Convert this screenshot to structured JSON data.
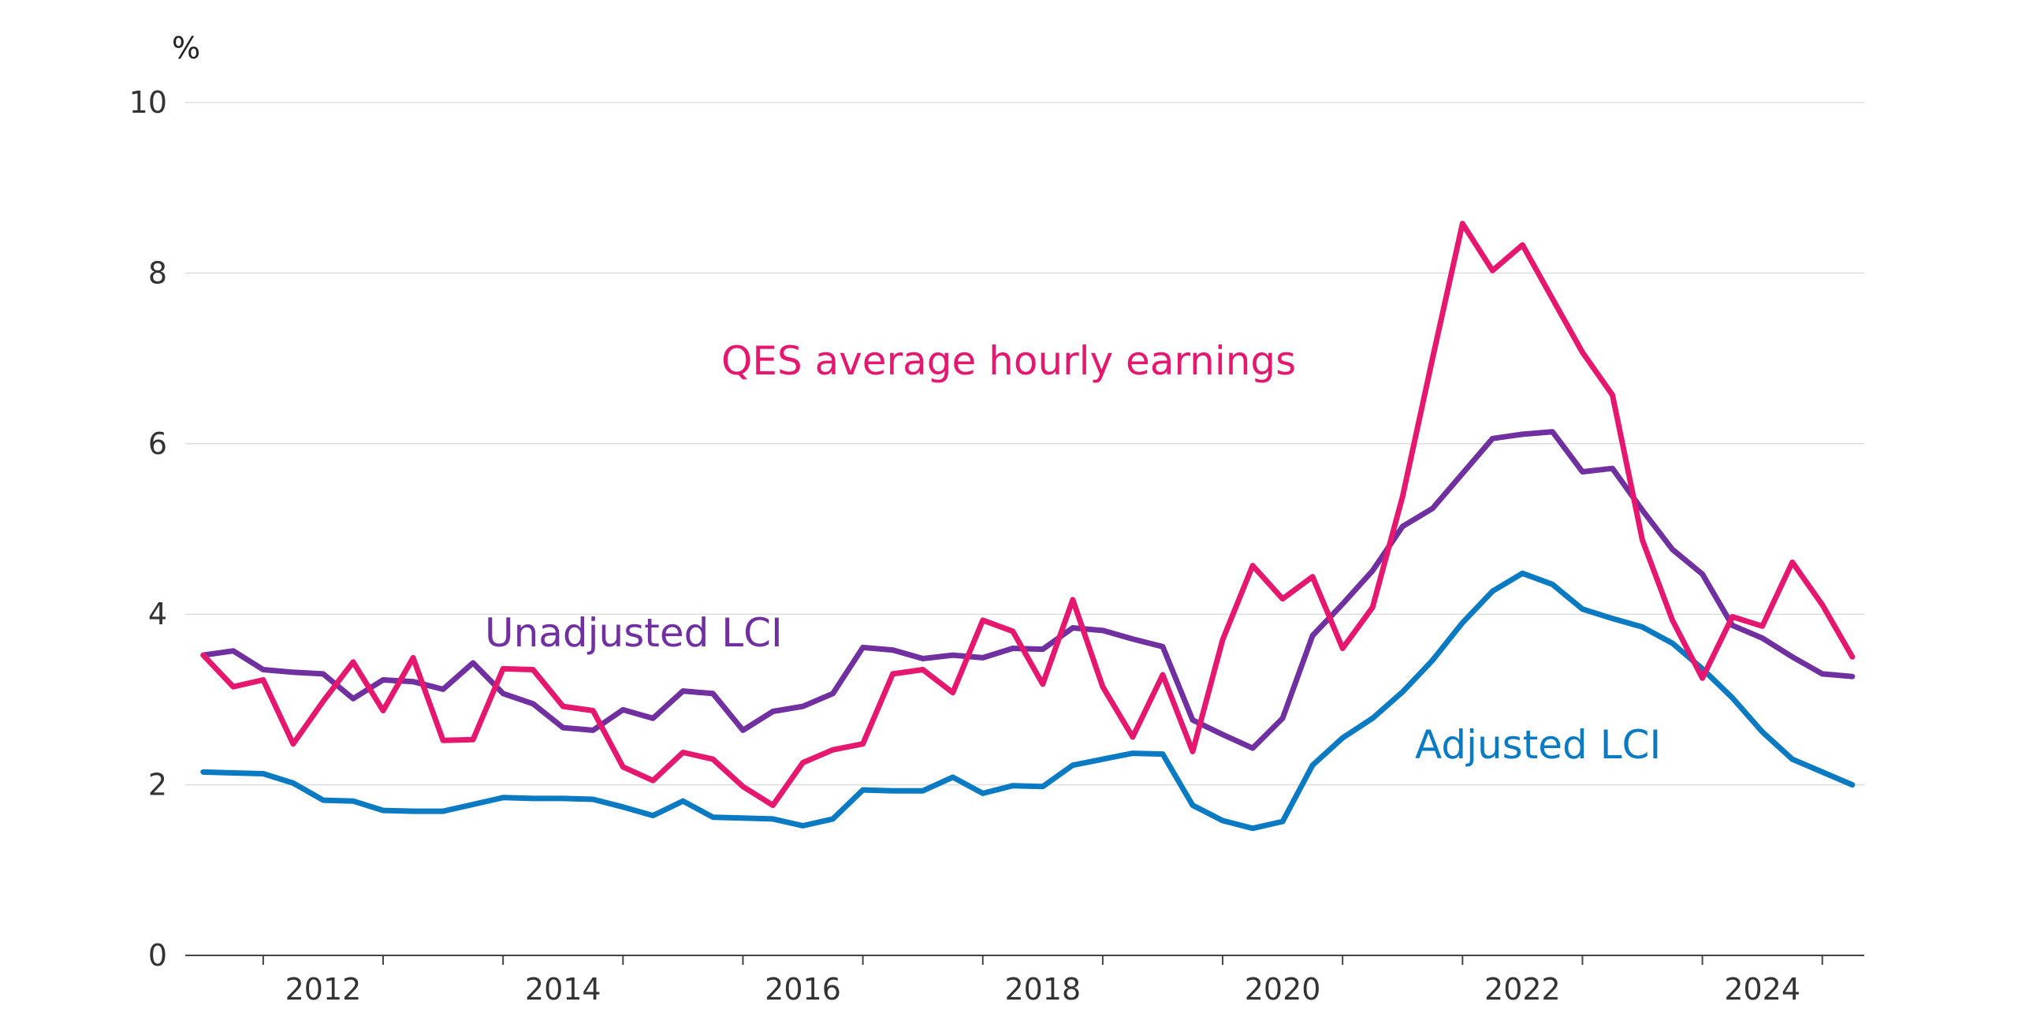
{
  "chart_data": {
    "type": "line",
    "ylabel": "%",
    "ylim": [
      0,
      10
    ],
    "yticks": [
      "0",
      "2",
      "4",
      "6",
      "8",
      "10"
    ],
    "xlim": [
      2011.35,
      2025.35
    ],
    "xticks": [
      "2012",
      "2014",
      "2016",
      "2018",
      "2020",
      "2022",
      "2024"
    ],
    "grid": true,
    "x": [
      2011.5,
      2011.75,
      2012.0,
      2012.25,
      2012.5,
      2012.75,
      2013.0,
      2013.25,
      2013.5,
      2013.75,
      2014.0,
      2014.25,
      2014.5,
      2014.75,
      2015.0,
      2015.25,
      2015.5,
      2015.75,
      2016.0,
      2016.25,
      2016.5,
      2016.75,
      2017.0,
      2017.25,
      2017.5,
      2017.75,
      2018.0,
      2018.25,
      2018.5,
      2018.75,
      2019.0,
      2019.25,
      2019.5,
      2019.75,
      2020.0,
      2020.25,
      2020.5,
      2020.75,
      2021.0,
      2021.25,
      2021.5,
      2021.75,
      2022.0,
      2022.25,
      2022.5,
      2022.75,
      2023.0,
      2023.25,
      2023.5,
      2023.75,
      2024.0,
      2024.25,
      2024.5,
      2024.75,
      2025.0,
      2025.25
    ],
    "series": [
      {
        "name": "QES average hourly earnings",
        "color": "#e5176f",
        "values": [
          3.52,
          3.15,
          3.23,
          2.48,
          2.98,
          3.44,
          2.87,
          3.49,
          2.52,
          2.53,
          3.36,
          3.35,
          2.92,
          2.87,
          2.21,
          2.05,
          2.38,
          2.3,
          1.98,
          1.76,
          2.26,
          2.41,
          2.48,
          3.3,
          3.35,
          3.08,
          3.93,
          3.8,
          3.18,
          4.17,
          3.15,
          2.56,
          3.29,
          2.39,
          3.7,
          4.57,
          4.18,
          4.44,
          3.6,
          4.08,
          5.38,
          7.0,
          8.58,
          8.03,
          8.33,
          7.7,
          7.07,
          6.57,
          4.87,
          3.93,
          3.25,
          3.97,
          3.86,
          4.61,
          4.11,
          3.5
        ]
      },
      {
        "name": "Unadjusted LCI",
        "color": "#7030a0",
        "values": [
          3.52,
          3.57,
          3.35,
          3.32,
          3.3,
          3.01,
          3.23,
          3.21,
          3.12,
          3.43,
          3.07,
          2.95,
          2.67,
          2.64,
          2.88,
          2.78,
          3.1,
          3.07,
          2.64,
          2.86,
          2.92,
          3.07,
          3.61,
          3.58,
          3.48,
          3.52,
          3.49,
          3.6,
          3.59,
          3.84,
          3.81,
          3.71,
          3.62,
          2.76,
          2.59,
          2.43,
          2.78,
          3.75,
          4.12,
          4.51,
          5.03,
          5.24,
          5.65,
          6.06,
          6.11,
          6.14,
          5.67,
          5.71,
          5.22,
          4.76,
          4.47,
          3.87,
          3.72,
          3.5,
          3.3,
          3.27
        ]
      },
      {
        "name": "Adjusted LCI",
        "color": "#0a7ac2",
        "values": [
          2.15,
          2.14,
          2.13,
          2.02,
          1.82,
          1.81,
          1.7,
          1.69,
          1.69,
          1.77,
          1.85,
          1.84,
          1.84,
          1.83,
          1.74,
          1.64,
          1.81,
          1.62,
          1.61,
          1.6,
          1.52,
          1.6,
          1.94,
          1.93,
          1.93,
          2.09,
          1.9,
          1.99,
          1.98,
          2.23,
          2.3,
          2.37,
          2.36,
          1.76,
          1.58,
          1.49,
          1.57,
          2.23,
          2.55,
          2.78,
          3.09,
          3.46,
          3.9,
          4.27,
          4.48,
          4.35,
          4.06,
          3.95,
          3.85,
          3.66,
          3.36,
          3.02,
          2.62,
          2.3,
          2.15,
          2.0
        ]
      }
    ]
  }
}
